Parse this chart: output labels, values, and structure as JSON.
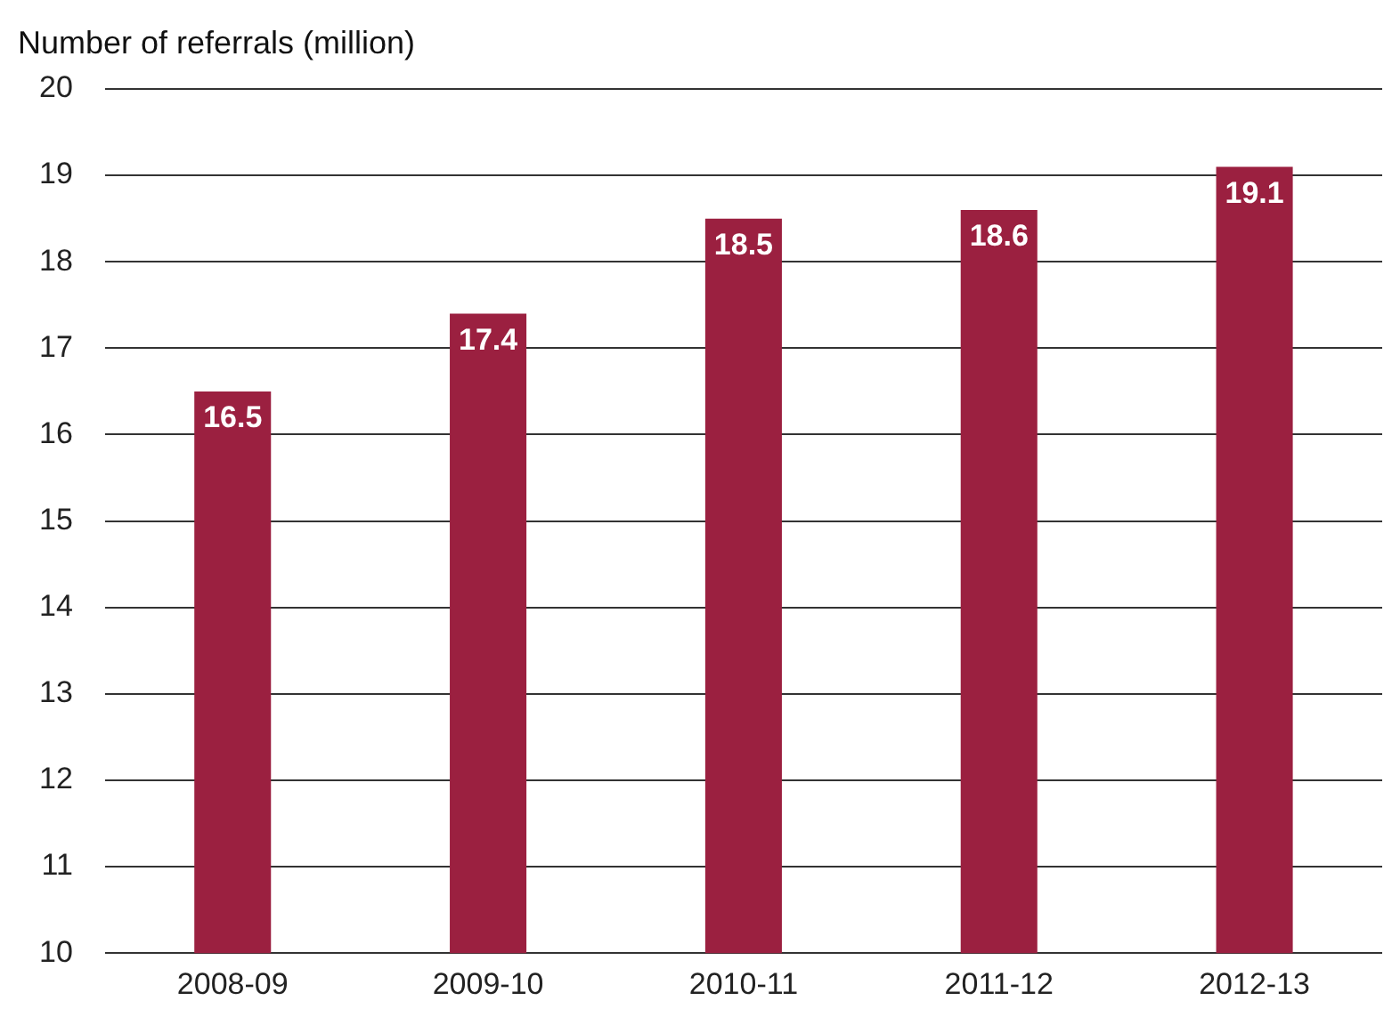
{
  "chart_data": {
    "type": "bar",
    "ylabel": "Number of referrals (million)",
    "categories": [
      "2008-09",
      "2009-10",
      "2010-11",
      "2011-12",
      "2012-13"
    ],
    "values": [
      16.5,
      17.4,
      18.5,
      18.6,
      19.1
    ],
    "color": "#9b2040",
    "ylim": [
      10,
      20
    ],
    "yticks": [
      10,
      11,
      12,
      13,
      14,
      15,
      16,
      17,
      18,
      19,
      20
    ],
    "grid": "y",
    "data_labels": true,
    "legend": false
  }
}
